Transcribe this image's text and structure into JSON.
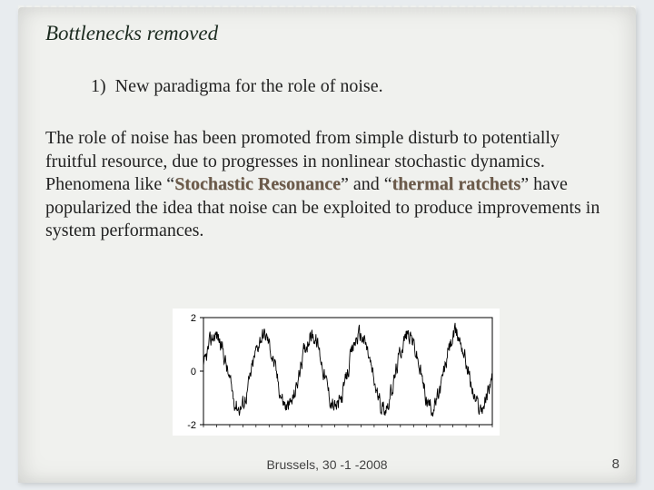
{
  "title": "Bottlenecks removed",
  "bullet": {
    "num": "1)",
    "text": "New paradigma for the role of noise."
  },
  "body": {
    "p1a": "The role of noise has been promoted from simple disturb to potentially fruitful resource, due to progresses in nonlinear stochastic dynamics.",
    "p2a": "Phenomena like “",
    "emph1": "Stochastic Resonance",
    "p2b": "” and “",
    "emph2": "thermal ratchets",
    "p2c": "” have popularized the idea that noise can be exploited to produce improvements in system performances."
  },
  "chart": {
    "type": "line",
    "xlim": [
      0,
      660
    ],
    "ylim": [
      -2,
      2
    ],
    "yticks": [
      -2,
      0,
      2
    ],
    "axis_color": "#000000",
    "background": "#ffffff",
    "line_color": "#000000",
    "line_width": 0.9,
    "tick_fontsize": 11,
    "signal": {
      "carrier_period": 110,
      "carrier_amp": 1.35,
      "noise_amp": 0.6,
      "samples": 660
    }
  },
  "footer": "Brussels, 30 -1 -2008",
  "page": "8",
  "colors": {
    "slide_bg": "#f0f1ee",
    "page_bg": "#e8ecef",
    "title_color": "#1c2b20",
    "text_color": "#222222",
    "emph_color": "#6b5a4a"
  }
}
